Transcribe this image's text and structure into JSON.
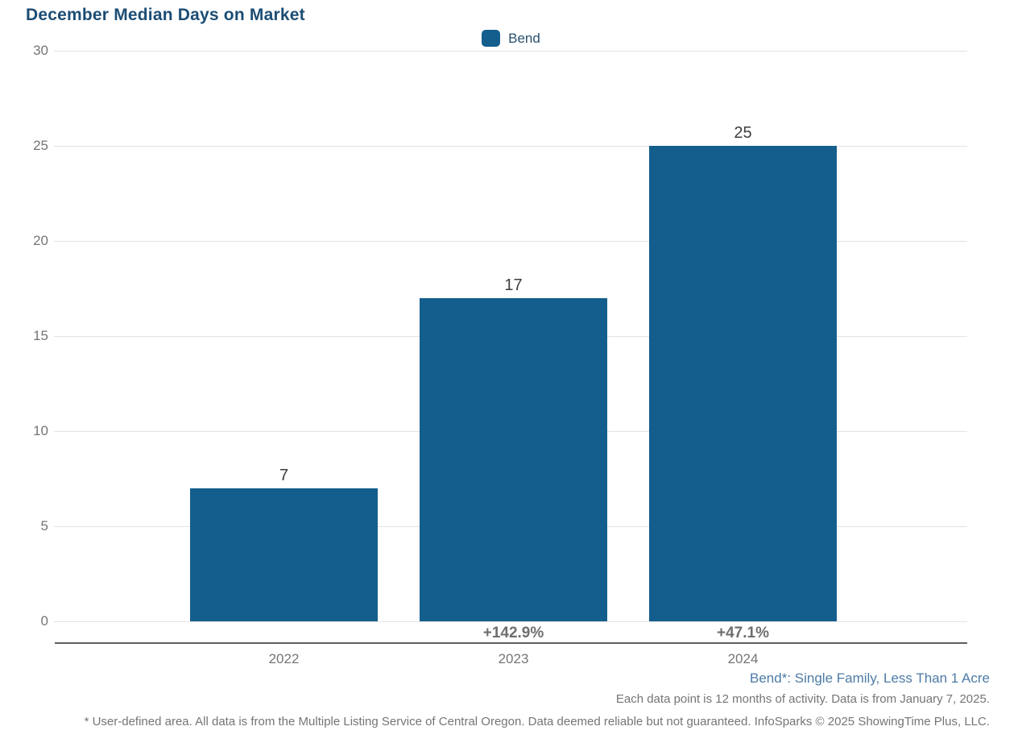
{
  "title": "December Median Days on Market",
  "legend": {
    "label": "Bend",
    "swatch_icon": "legend-swatch-square",
    "swatch_color": "#135e8c"
  },
  "chart_data": {
    "type": "bar",
    "title": "December Median Days on Market",
    "categories": [
      "2022",
      "2023",
      "2024"
    ],
    "values": [
      7,
      17,
      25
    ],
    "value_labels": [
      "7",
      "17",
      "25"
    ],
    "pct_change_labels": [
      "",
      "+142.9%",
      "+47.1%"
    ],
    "series_name": "Bend",
    "xlabel": "",
    "ylabel": "",
    "ylim": [
      0,
      30
    ],
    "yticks": [
      0,
      5,
      10,
      15,
      20,
      25,
      30
    ],
    "grid": true,
    "legend_position": "top-center",
    "bar_color": "#135e8c"
  },
  "colors": {
    "bar": "#135e8c",
    "title_text": "#1c4d74",
    "footnote_blue": "#4d7ba7",
    "axis_text": "#757575",
    "gridline": "#e3e3e3",
    "axis_line": "#5f5f5f"
  },
  "footnotes": {
    "segment": "Bend*: Single Family, Less Than 1 Acre",
    "data_note": "Each data point is 12 months of activity. Data is from January 7, 2025.",
    "disclaimer": "* User-defined area. All data is from the Multiple Listing Service of Central Oregon. Data deemed reliable but not guaranteed. InfoSparks © 2025 ShowingTime Plus, LLC."
  }
}
